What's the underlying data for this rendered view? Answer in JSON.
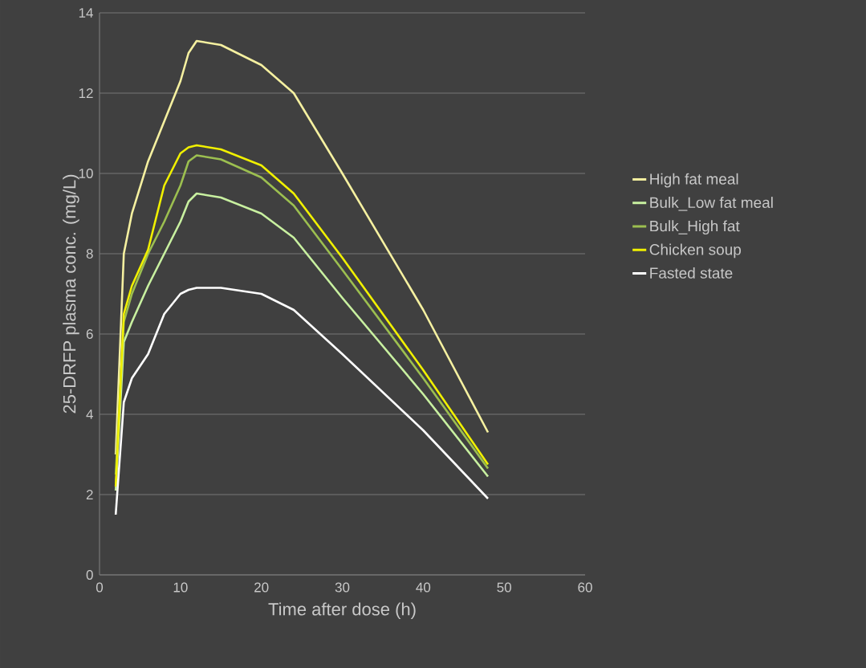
{
  "chart_data": {
    "type": "line",
    "xlabel": "Time after dose  (h)",
    "ylabel": "25-DRFP plasma conc.  (mg/L)",
    "xlim": [
      0,
      60
    ],
    "xticks": [
      0,
      10,
      20,
      30,
      40,
      50,
      60
    ],
    "ylim": [
      0,
      14
    ],
    "yticks": [
      0,
      2,
      4,
      6,
      8,
      10,
      12,
      14
    ],
    "grid": "y",
    "legend": "right",
    "marker": "none",
    "line_style": "solid",
    "x": [
      2,
      3,
      4,
      6,
      8,
      10,
      11,
      12,
      15,
      20,
      24,
      30,
      40,
      48
    ],
    "series": [
      {
        "name": "High fat meal",
        "color": "#f5f0a0",
        "values": [
          3.0,
          8.0,
          9.0,
          10.3,
          11.3,
          12.3,
          13.0,
          13.3,
          13.2,
          12.7,
          12.0,
          10.0,
          6.6,
          3.55
        ]
      },
      {
        "name": "Bulk_Low fat meal",
        "color": "#c8f0a0",
        "values": [
          2.1,
          5.8,
          6.3,
          7.2,
          8.0,
          8.8,
          9.3,
          9.5,
          9.4,
          9.0,
          8.4,
          6.9,
          4.5,
          2.45
        ]
      },
      {
        "name": "Bulk_High fat",
        "color": "#9cbf50",
        "values": [
          2.5,
          6.3,
          7.0,
          8.0,
          8.8,
          9.7,
          10.3,
          10.45,
          10.35,
          9.9,
          9.2,
          7.6,
          4.9,
          2.65
        ]
      },
      {
        "name": "Chicken soup",
        "color": "#f0f000",
        "values": [
          2.2,
          6.5,
          7.2,
          8.1,
          9.7,
          10.5,
          10.65,
          10.7,
          10.6,
          10.2,
          9.5,
          7.9,
          5.1,
          2.75
        ]
      },
      {
        "name": "Fasted state",
        "color": "#ffffff",
        "values": [
          1.5,
          4.3,
          4.9,
          5.5,
          6.5,
          7.0,
          7.1,
          7.15,
          7.15,
          7.0,
          6.6,
          5.5,
          3.6,
          1.9
        ]
      }
    ]
  }
}
